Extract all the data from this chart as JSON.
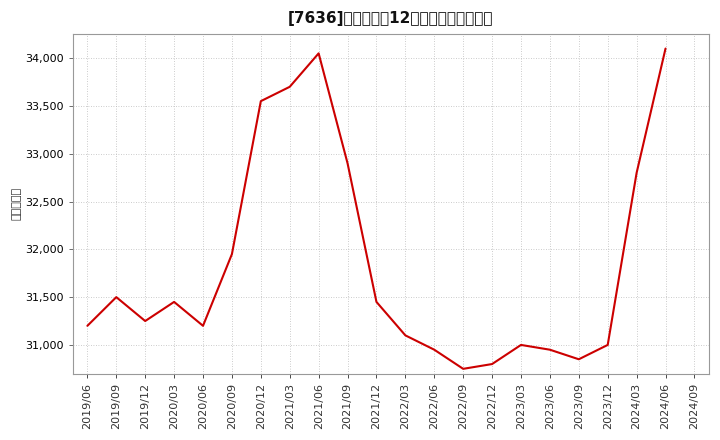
{
  "title": "[7636]　売上高の12か月移動合計の推移",
  "ylabel": "（百万円）",
  "line_color": "#cc0000",
  "background_color": "#ffffff",
  "plot_bg_color": "#ffffff",
  "grid_color": "#bbbbbb",
  "dates": [
    "2019/06",
    "2019/09",
    "2019/12",
    "2020/03",
    "2020/06",
    "2020/09",
    "2020/12",
    "2021/03",
    "2021/06",
    "2021/09",
    "2021/12",
    "2022/03",
    "2022/06",
    "2022/09",
    "2022/12",
    "2023/03",
    "2023/06",
    "2023/09",
    "2023/12",
    "2024/03",
    "2024/06",
    "2024/09"
  ],
  "values": [
    31200,
    31500,
    31250,
    31450,
    31200,
    31950,
    33550,
    33700,
    34050,
    32900,
    31450,
    31100,
    30950,
    30750,
    30800,
    31000,
    30950,
    30850,
    31000,
    32800,
    34100,
    null
  ],
  "yticks": [
    31000,
    31500,
    32000,
    32500,
    33000,
    33500,
    34000
  ],
  "ylim": [
    30700,
    34250
  ],
  "title_fontsize": 11,
  "tick_fontsize": 8,
  "ylabel_fontsize": 8
}
